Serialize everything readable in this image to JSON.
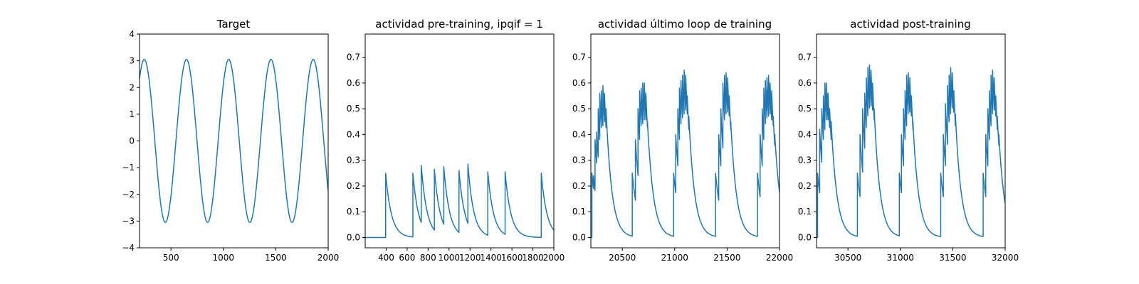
{
  "colors": {
    "series": "#1f77b4",
    "background": "#ffffff",
    "axes": "#000000"
  },
  "chart_data": [
    {
      "type": "line",
      "title": "Target",
      "xlim": [
        200,
        2000
      ],
      "ylim": [
        -4,
        4
      ],
      "xticks": [
        500,
        1000,
        1500,
        2000
      ],
      "yticks": [
        -4,
        -3,
        -2,
        -1,
        0,
        1,
        2,
        3,
        4
      ],
      "grid": false,
      "series": [
        {
          "kind": "sine",
          "amplitude": 3.05,
          "period": 403,
          "phase_peak_x": 245,
          "x_range": [
            200,
            2000
          ]
        }
      ]
    },
    {
      "type": "line",
      "title": "actividad pre-training, ipqif = 1",
      "xlim": [
        200,
        2000
      ],
      "ylim": [
        -0.04,
        0.79
      ],
      "xticks": [
        400,
        600,
        800,
        1000,
        1200,
        1400,
        1600,
        1800,
        2000
      ],
      "yticks": [
        0.0,
        0.1,
        0.2,
        0.3,
        0.4,
        0.5,
        0.6,
        0.7
      ],
      "grid": false,
      "series": [
        {
          "kind": "spikes",
          "baseline": 0.0,
          "tau": 55,
          "spikes": [
            [
              395,
              0.25
            ],
            [
              655,
              0.25
            ],
            [
              735,
              0.28
            ],
            [
              860,
              0.265
            ],
            [
              950,
              0.275
            ],
            [
              1095,
              0.26
            ],
            [
              1180,
              0.285
            ],
            [
              1370,
              0.255
            ],
            [
              1535,
              0.255
            ],
            [
              1880,
              0.25
            ]
          ],
          "x_range": [
            200,
            2000
          ]
        }
      ]
    },
    {
      "type": "line",
      "title": "actividad último loop de training",
      "xlim": [
        20200,
        22000
      ],
      "ylim": [
        -0.04,
        0.79
      ],
      "xticks": [
        20500,
        21000,
        21500,
        22000
      ],
      "yticks": [
        0.0,
        0.1,
        0.2,
        0.3,
        0.4,
        0.5,
        0.6,
        0.7
      ],
      "grid": false,
      "series": [
        {
          "kind": "spikes",
          "baseline": 0.0,
          "tau": 55,
          "spikes": [
            [
              20210,
              0.25
            ],
            [
              20225,
              0.24
            ],
            [
              20240,
              0.38
            ],
            [
              20255,
              0.41
            ],
            [
              20270,
              0.5
            ],
            [
              20285,
              0.56
            ],
            [
              20300,
              0.57
            ],
            [
              20315,
              0.59
            ],
            [
              20330,
              0.56
            ],
            [
              20345,
              0.5
            ],
            [
              20595,
              0.25
            ],
            [
              20625,
              0.38
            ],
            [
              20650,
              0.5
            ],
            [
              20665,
              0.57
            ],
            [
              20680,
              0.58
            ],
            [
              20695,
              0.6
            ],
            [
              20710,
              0.6
            ],
            [
              20725,
              0.56
            ],
            [
              20740,
              0.45
            ],
            [
              20755,
              0.35
            ],
            [
              20990,
              0.25
            ],
            [
              21010,
              0.4
            ],
            [
              21030,
              0.5
            ],
            [
              21045,
              0.58
            ],
            [
              21060,
              0.61
            ],
            [
              21075,
              0.63
            ],
            [
              21090,
              0.65
            ],
            [
              21105,
              0.63
            ],
            [
              21120,
              0.55
            ],
            [
              21135,
              0.47
            ],
            [
              21390,
              0.25
            ],
            [
              21420,
              0.4
            ],
            [
              21440,
              0.5
            ],
            [
              21460,
              0.6
            ],
            [
              21475,
              0.63
            ],
            [
              21490,
              0.64
            ],
            [
              21505,
              0.62
            ],
            [
              21520,
              0.55
            ],
            [
              21535,
              0.45
            ],
            [
              21790,
              0.25
            ],
            [
              21815,
              0.4
            ],
            [
              21835,
              0.5
            ],
            [
              21850,
              0.58
            ],
            [
              21865,
              0.61
            ],
            [
              21880,
              0.62
            ],
            [
              21895,
              0.63
            ],
            [
              21910,
              0.6
            ],
            [
              21925,
              0.57
            ],
            [
              21940,
              0.47
            ],
            [
              21955,
              0.4
            ]
          ],
          "x_range": [
            20200,
            22000
          ]
        }
      ]
    },
    {
      "type": "line",
      "title": "actividad post-training",
      "xlim": [
        30200,
        32000
      ],
      "ylim": [
        -0.04,
        0.79
      ],
      "xticks": [
        30500,
        31000,
        31500,
        32000
      ],
      "yticks": [
        0.0,
        0.1,
        0.2,
        0.3,
        0.4,
        0.5,
        0.6,
        0.7
      ],
      "grid": false,
      "series": [
        {
          "kind": "spikes",
          "baseline": 0.0,
          "tau": 55,
          "spikes": [
            [
              30210,
              0.25
            ],
            [
              30230,
              0.42
            ],
            [
              30250,
              0.5
            ],
            [
              30265,
              0.55
            ],
            [
              30280,
              0.6
            ],
            [
              30295,
              0.6
            ],
            [
              30310,
              0.56
            ],
            [
              30325,
              0.5
            ],
            [
              30340,
              0.45
            ],
            [
              30590,
              0.25
            ],
            [
              30615,
              0.4
            ],
            [
              30640,
              0.5
            ],
            [
              30660,
              0.56
            ],
            [
              30675,
              0.62
            ],
            [
              30690,
              0.66
            ],
            [
              30705,
              0.67
            ],
            [
              30720,
              0.65
            ],
            [
              30735,
              0.6
            ],
            [
              30750,
              0.5
            ],
            [
              30990,
              0.25
            ],
            [
              31010,
              0.4
            ],
            [
              31030,
              0.5
            ],
            [
              31045,
              0.57
            ],
            [
              31060,
              0.63
            ],
            [
              31075,
              0.64
            ],
            [
              31090,
              0.62
            ],
            [
              31105,
              0.55
            ],
            [
              31120,
              0.45
            ],
            [
              31385,
              0.25
            ],
            [
              31410,
              0.4
            ],
            [
              31430,
              0.52
            ],
            [
              31450,
              0.59
            ],
            [
              31465,
              0.63
            ],
            [
              31480,
              0.66
            ],
            [
              31495,
              0.64
            ],
            [
              31510,
              0.57
            ],
            [
              31525,
              0.48
            ],
            [
              31790,
              0.25
            ],
            [
              31815,
              0.4
            ],
            [
              31835,
              0.5
            ],
            [
              31850,
              0.57
            ],
            [
              31865,
              0.63
            ],
            [
              31880,
              0.65
            ],
            [
              31895,
              0.62
            ],
            [
              31910,
              0.55
            ],
            [
              31925,
              0.47
            ],
            [
              31940,
              0.4
            ]
          ],
          "x_range": [
            30200,
            32000
          ]
        }
      ]
    }
  ]
}
